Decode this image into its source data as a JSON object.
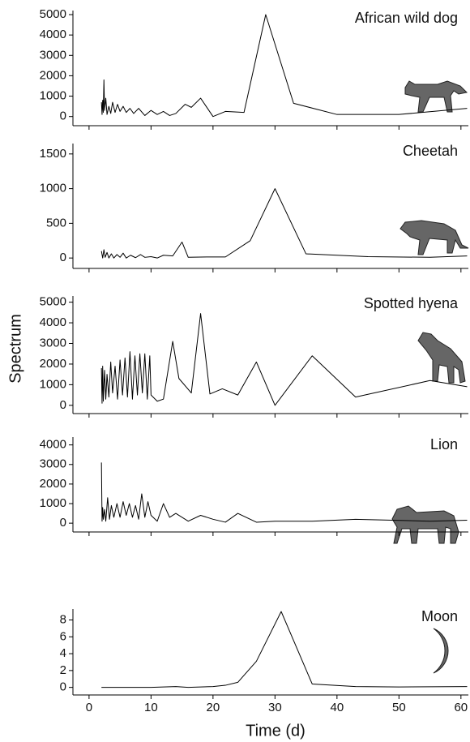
{
  "x_label": "Time (d)",
  "y_label": "Spectrum",
  "chart_data": [
    {
      "type": "line",
      "title": "African wild dog",
      "color": "#000000",
      "x": [
        2,
        2.1,
        2.2,
        2.3,
        2.4,
        2.5,
        2.7,
        2.9,
        3.2,
        3.5,
        3.8,
        4.2,
        4.6,
        5,
        5.5,
        6,
        6.6,
        7.2,
        8,
        9,
        10,
        11,
        12,
        13,
        14,
        15.5,
        16.5,
        18,
        20,
        22,
        25,
        28.5,
        33,
        40,
        50,
        61
      ],
      "values": [
        700,
        100,
        800,
        200,
        1800,
        300,
        900,
        100,
        500,
        150,
        700,
        200,
        600,
        250,
        500,
        200,
        400,
        150,
        400,
        50,
        300,
        100,
        250,
        50,
        150,
        600,
        450,
        900,
        0,
        250,
        200,
        5000,
        650,
        100,
        100,
        400
      ],
      "xlim": [
        -2.6,
        61.2
      ],
      "ylim": [
        -450,
        5200
      ],
      "xticks": [
        0,
        10,
        20,
        30,
        40,
        50,
        60
      ],
      "yticks": [
        0,
        1000,
        2000,
        3000,
        4000,
        5000
      ]
    },
    {
      "type": "line",
      "title": "Cheetah",
      "color": "#000000",
      "x": [
        2,
        2.2,
        2.4,
        2.6,
        2.9,
        3.2,
        3.6,
        4,
        4.5,
        5,
        5.5,
        6,
        6.7,
        7.5,
        8.3,
        9,
        10,
        11,
        12,
        13.5,
        15,
        16,
        19,
        22,
        26,
        30,
        35,
        45,
        55,
        61
      ],
      "values": [
        100,
        0,
        120,
        10,
        80,
        0,
        60,
        0,
        50,
        10,
        70,
        0,
        40,
        5,
        50,
        10,
        20,
        0,
        40,
        30,
        230,
        10,
        15,
        15,
        250,
        1000,
        60,
        20,
        10,
        30
      ],
      "xlim": [
        -2.6,
        61.2
      ],
      "ylim": [
        -150,
        1650
      ],
      "xticks": [
        0,
        10,
        20,
        30,
        40,
        50,
        60
      ],
      "yticks": [
        0,
        500,
        1000,
        1500
      ]
    },
    {
      "type": "line",
      "title": "Spotted hyena",
      "color": "#000000",
      "x": [
        2,
        2.1,
        2.2,
        2.3,
        2.5,
        2.7,
        2.9,
        3.2,
        3.5,
        3.8,
        4.2,
        4.6,
        5,
        5.4,
        5.8,
        6.2,
        6.6,
        7,
        7.4,
        7.8,
        8.2,
        8.6,
        9,
        9.4,
        9.8,
        10,
        11,
        12,
        13.5,
        14.5,
        16.5,
        18,
        19.5,
        21.5,
        24,
        27,
        30,
        36,
        43,
        55,
        61
      ],
      "values": [
        1800,
        100,
        1900,
        200,
        1700,
        300,
        1500,
        400,
        2100,
        600,
        1900,
        300,
        2200,
        500,
        2300,
        400,
        2600,
        300,
        2400,
        500,
        2500,
        600,
        2500,
        300,
        2400,
        500,
        200,
        300,
        3100,
        1300,
        600,
        4450,
        550,
        800,
        500,
        2100,
        0,
        2400,
        400,
        1200,
        900
      ],
      "xlim": [
        -2.6,
        61.2
      ],
      "ylim": [
        -400,
        5300
      ],
      "xticks": [
        0,
        10,
        20,
        30,
        40,
        50,
        60
      ],
      "yticks": [
        0,
        1000,
        2000,
        3000,
        4000,
        5000
      ]
    },
    {
      "type": "line",
      "title": "Lion",
      "color": "#000000",
      "x": [
        2,
        2.1,
        2.2,
        2.3,
        2.5,
        2.7,
        3,
        3.3,
        3.6,
        4,
        4.5,
        5,
        5.5,
        6,
        6.5,
        7,
        7.5,
        8,
        8.5,
        9,
        9.5,
        10,
        11,
        12,
        13,
        14,
        16,
        18,
        20,
        22,
        24,
        27,
        30,
        36,
        43,
        55,
        61
      ],
      "values": [
        3100,
        100,
        800,
        200,
        700,
        100,
        1300,
        200,
        900,
        300,
        1000,
        300,
        1100,
        400,
        1000,
        300,
        900,
        200,
        1500,
        300,
        1100,
        400,
        100,
        1000,
        300,
        500,
        100,
        400,
        200,
        50,
        500,
        50,
        100,
        100,
        200,
        100,
        150
      ],
      "xlim": [
        -2.6,
        61.2
      ],
      "ylim": [
        -450,
        4400
      ],
      "xticks": [
        0,
        10,
        20,
        30,
        40,
        50,
        60
      ],
      "yticks": [
        0,
        1000,
        2000,
        3000,
        4000
      ]
    },
    {
      "type": "line",
      "title": "Moon",
      "color": "#000000",
      "x": [
        2,
        5,
        8,
        10,
        12,
        14,
        16,
        18,
        20,
        22,
        24,
        27,
        31,
        36,
        43,
        50,
        61
      ],
      "values": [
        0,
        0,
        0,
        0,
        0.05,
        0.1,
        0,
        0.05,
        0.1,
        0.25,
        0.6,
        3.1,
        9,
        0.4,
        0.1,
        0.05,
        0.1
      ],
      "xlim": [
        -2.6,
        61.2
      ],
      "ylim": [
        -0.9,
        9.3
      ],
      "xticks": [
        0,
        10,
        20,
        30,
        40,
        50,
        60
      ],
      "yticks": [
        0,
        2,
        4,
        6,
        8
      ]
    }
  ]
}
